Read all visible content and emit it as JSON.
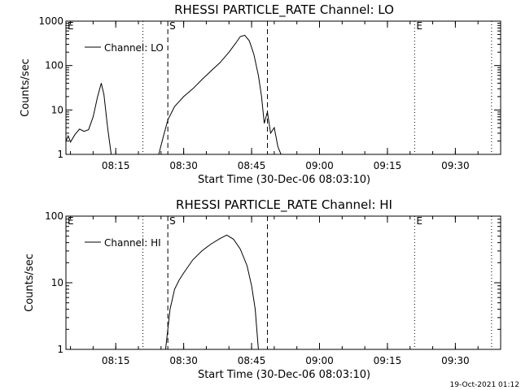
{
  "footer": {
    "timestamp": "19-Oct-2021 01:12"
  },
  "chart_data": [
    {
      "type": "line",
      "title": "RHESSI PARTICLE_RATE Channel: LO",
      "xlabel": "Start Time (30-Dec-06 08:03:10)",
      "ylabel": "Counts/sec",
      "yscale": "log",
      "ylim": [
        1,
        1000
      ],
      "xlim": [
        "08:04",
        "09:40"
      ],
      "yticks": [
        "1",
        "10",
        "100",
        "1000"
      ],
      "xticks": [
        "08:15",
        "08:30",
        "08:45",
        "09:00",
        "09:15",
        "09:30"
      ],
      "legend": {
        "label": "Channel: LO",
        "position": "top-left"
      },
      "markers": [
        {
          "time": "08:04",
          "style": "dotted",
          "label": "E"
        },
        {
          "time": "08:21",
          "style": "dotted",
          "label": ""
        },
        {
          "time": "08:26.5",
          "style": "dashed",
          "label": "S"
        },
        {
          "time": "08:48.5",
          "style": "dashed",
          "label": ""
        },
        {
          "time": "09:21",
          "style": "dotted",
          "label": "E"
        },
        {
          "time": "09:38",
          "style": "dotted",
          "label": ""
        }
      ],
      "series": [
        {
          "name": "Channel: LO",
          "points": [
            [
              "08:04",
              2
            ],
            [
              "08:04.5",
              2.6
            ],
            [
              "08:05",
              1.9
            ],
            [
              "08:06",
              2.8
            ],
            [
              "08:07",
              3.7
            ],
            [
              "08:08",
              3.3
            ],
            [
              "08:09",
              3.6
            ],
            [
              "08:10",
              7
            ],
            [
              "08:11",
              20
            ],
            [
              "08:11.8",
              40
            ],
            [
              "08:12.4",
              22
            ],
            [
              "08:13.2",
              4
            ],
            [
              "08:14",
              1
            ],
            [
              "08:24.5",
              1
            ],
            [
              "08:25.5",
              2.5
            ],
            [
              "08:26.5",
              6
            ],
            [
              "08:28",
              12
            ],
            [
              "08:30",
              20
            ],
            [
              "08:32",
              30
            ],
            [
              "08:34",
              48
            ],
            [
              "08:36",
              75
            ],
            [
              "08:38",
              115
            ],
            [
              "08:40",
              200
            ],
            [
              "08:41.5",
              320
            ],
            [
              "08:42.5",
              450
            ],
            [
              "08:43.5",
              480
            ],
            [
              "08:44.5",
              360
            ],
            [
              "08:45.5",
              180
            ],
            [
              "08:46.5",
              60
            ],
            [
              "08:47.2",
              20
            ],
            [
              "08:47.8",
              5
            ],
            [
              "08:48.5",
              9
            ],
            [
              "08:49.2",
              3
            ],
            [
              "08:50",
              4
            ],
            [
              "08:50.8",
              1.5
            ],
            [
              "08:51.5",
              1
            ]
          ]
        }
      ]
    },
    {
      "type": "line",
      "title": "RHESSI PARTICLE_RATE Channel: HI",
      "xlabel": "Start Time (30-Dec-06 08:03:10)",
      "ylabel": "Counts/sec",
      "yscale": "log",
      "ylim": [
        1,
        100
      ],
      "xlim": [
        "08:04",
        "09:40"
      ],
      "yticks": [
        "1",
        "10",
        "100"
      ],
      "xticks": [
        "08:15",
        "08:30",
        "08:45",
        "09:00",
        "09:15",
        "09:30"
      ],
      "legend": {
        "label": "Channel: HI",
        "position": "top-left"
      },
      "markers": [
        {
          "time": "08:04",
          "style": "dotted",
          "label": "E"
        },
        {
          "time": "08:21",
          "style": "dotted",
          "label": ""
        },
        {
          "time": "08:26.5",
          "style": "dashed",
          "label": "S"
        },
        {
          "time": "08:48.5",
          "style": "dashed",
          "label": ""
        },
        {
          "time": "09:21",
          "style": "dotted",
          "label": "E"
        },
        {
          "time": "09:38",
          "style": "dotted",
          "label": ""
        }
      ],
      "series": [
        {
          "name": "Channel: HI",
          "points": [
            [
              "08:26",
              1
            ],
            [
              "08:27",
              4
            ],
            [
              "08:28",
              8
            ],
            [
              "08:29",
              11
            ],
            [
              "08:30",
              14
            ],
            [
              "08:32",
              22
            ],
            [
              "08:34",
              30
            ],
            [
              "08:36",
              38
            ],
            [
              "08:38",
              46
            ],
            [
              "08:39.5",
              52
            ],
            [
              "08:41",
              45
            ],
            [
              "08:42.5",
              32
            ],
            [
              "08:44",
              18
            ],
            [
              "08:45",
              9
            ],
            [
              "08:45.8",
              4
            ],
            [
              "08:46.5",
              1
            ]
          ]
        }
      ]
    }
  ]
}
